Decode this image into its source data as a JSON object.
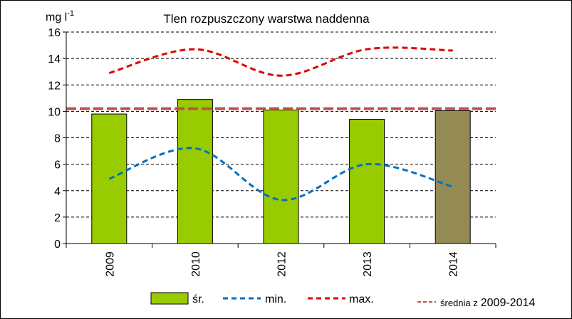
{
  "chart_data": {
    "type": "bar",
    "title": "Tlen rozpuszczony warstwa naddenna",
    "ylabel": "mg l",
    "ylabel_sup": "-1",
    "ylim": [
      0,
      16
    ],
    "yticks": [
      0,
      2,
      4,
      6,
      8,
      10,
      12,
      14,
      16
    ],
    "categories": [
      "2009",
      "2010",
      "2012",
      "2013",
      "2014"
    ],
    "series": [
      {
        "name": "śr.",
        "kind": "bar",
        "values": [
          9.8,
          10.9,
          10.1,
          9.4,
          10.05
        ]
      },
      {
        "name": "min.",
        "kind": "line",
        "style": "dashed",
        "values": [
          4.9,
          7.2,
          3.3,
          6.0,
          4.3
        ]
      },
      {
        "name": "max.",
        "kind": "line",
        "style": "dashed",
        "values": [
          12.9,
          14.7,
          12.7,
          14.7,
          14.6
        ]
      }
    ],
    "reference_line": {
      "name": "średnia z",
      "period": "2009-2014",
      "value": 10.2
    },
    "colors": {
      "bar": "#99cc00",
      "bar_highlight": "#948a54",
      "min": "#0070c0",
      "max": "#e00000",
      "reference": "#c0504d"
    },
    "legend": {
      "bar_label": "śr.",
      "min_label": "min.",
      "max_label": "max.",
      "ref_label_prefix": "średnia z",
      "ref_label_period": "2009-2014"
    }
  }
}
